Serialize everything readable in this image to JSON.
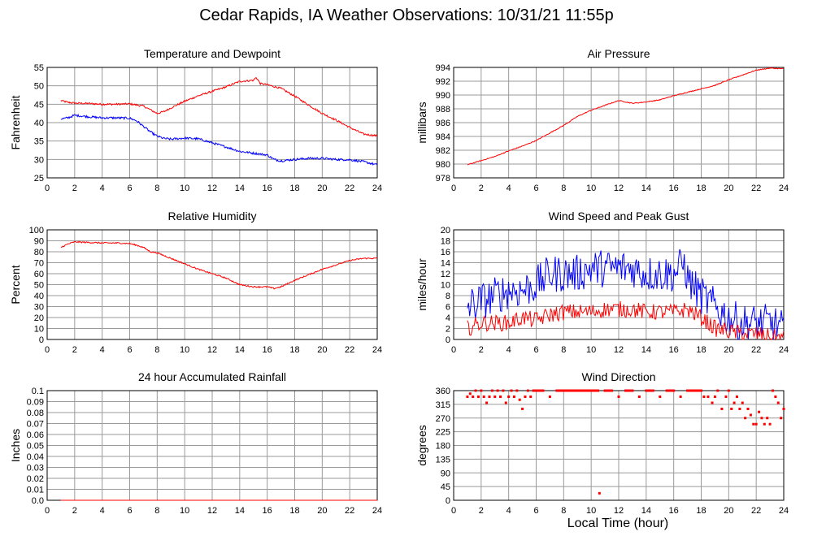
{
  "page": {
    "title": "Cedar Rapids, IA Weather Observations: 10/31/21 11:55p",
    "xaxis_title": "Local Time (hour)"
  },
  "colors": {
    "red": "#ff0000",
    "blue": "#0000ff",
    "grid": "#9a9a9a"
  },
  "chart_data": [
    {
      "type": "line",
      "title": "Temperature and Dewpoint",
      "ylabel": "Fahrenheit",
      "xlim": [
        0,
        24
      ],
      "ylim": [
        25,
        55
      ],
      "xticks": [
        2,
        4,
        6,
        8,
        10,
        12,
        14,
        16,
        18,
        20,
        22,
        24
      ],
      "yticks": [
        25,
        30,
        35,
        40,
        45,
        50,
        55
      ],
      "x_tick_labels": [
        "0",
        "2",
        "4",
        "6",
        "8",
        "10",
        "12",
        "14",
        "16",
        "18",
        "20",
        "22",
        "24"
      ],
      "series": [
        {
          "color": "#ff0000",
          "noise": 0.25,
          "x": [
            1,
            1.5,
            2,
            3,
            4,
            5,
            6,
            7,
            7.5,
            8,
            8.5,
            9,
            10,
            11,
            12,
            13,
            14,
            15,
            15.2,
            15.5,
            16,
            17,
            18,
            19,
            20,
            21,
            22,
            23,
            24
          ],
          "values": [
            46,
            45.5,
            45.3,
            45.2,
            45,
            45,
            45.1,
            44.5,
            43.5,
            42.5,
            43,
            44,
            45.8,
            47.3,
            48.5,
            49.7,
            51.2,
            51.5,
            52.3,
            50.6,
            50.3,
            49.3,
            47.2,
            44.8,
            42.5,
            40.7,
            38.7,
            36.9,
            36.4
          ]
        },
        {
          "color": "#0000ff",
          "noise": 0.3,
          "x": [
            1,
            1.5,
            2,
            3,
            4,
            5,
            6,
            6.5,
            7,
            7.5,
            8,
            8.5,
            9,
            10,
            11,
            12,
            13,
            14,
            15,
            16,
            16.5,
            17,
            18,
            19,
            20,
            21,
            22,
            23,
            24
          ],
          "values": [
            41,
            41.3,
            42,
            41.6,
            41.3,
            41.3,
            41.2,
            40.5,
            39,
            37.5,
            36.3,
            35.7,
            35.5,
            35.8,
            35.6,
            34.5,
            33.4,
            32.2,
            31.7,
            31.2,
            30,
            29.6,
            30,
            30.3,
            30.3,
            30,
            29.9,
            29.4,
            28.5
          ]
        }
      ]
    },
    {
      "type": "line",
      "title": "Air Pressure",
      "ylabel": "millibars",
      "xlim": [
        0,
        24
      ],
      "ylim": [
        978,
        994
      ],
      "xticks": [
        2,
        4,
        6,
        8,
        10,
        12,
        14,
        16,
        18,
        20,
        22,
        24
      ],
      "yticks": [
        978,
        980,
        982,
        984,
        986,
        988,
        990,
        992,
        994
      ],
      "x_tick_labels": [
        "0",
        "2",
        "4",
        "6",
        "8",
        "10",
        "12",
        "14",
        "16",
        "18",
        "20",
        "22",
        "24"
      ],
      "series": [
        {
          "color": "#ff0000",
          "noise": 0.06,
          "x": [
            1,
            2,
            3,
            4,
            5,
            6,
            7,
            8,
            9,
            10,
            11,
            12,
            13,
            14,
            15,
            16,
            17,
            18,
            19,
            20,
            21,
            22,
            23,
            24
          ],
          "values": [
            979.9,
            980.5,
            981.1,
            981.9,
            982.6,
            983.4,
            984.5,
            985.6,
            986.9,
            987.8,
            988.5,
            989.2,
            988.8,
            989,
            989.3,
            989.9,
            990.4,
            990.9,
            991.4,
            992.2,
            992.9,
            993.6,
            993.9,
            993.8
          ]
        }
      ]
    },
    {
      "type": "line",
      "title": "Relative Humidity",
      "ylabel": "Percent",
      "xlim": [
        0,
        24
      ],
      "ylim": [
        0,
        100
      ],
      "xticks": [
        2,
        4,
        6,
        8,
        10,
        12,
        14,
        16,
        18,
        20,
        22,
        24
      ],
      "yticks": [
        0,
        10,
        20,
        30,
        40,
        50,
        60,
        70,
        80,
        90,
        100
      ],
      "x_tick_labels": [
        "0",
        "2",
        "4",
        "6",
        "8",
        "10",
        "12",
        "14",
        "16",
        "18",
        "20",
        "22",
        "24"
      ],
      "series": [
        {
          "color": "#ff0000",
          "noise": 0.6,
          "x": [
            1,
            1.5,
            2,
            3,
            4,
            5,
            6,
            6.5,
            7,
            7.5,
            8,
            9,
            10,
            11,
            12,
            13,
            14,
            15,
            16,
            16.5,
            17,
            18,
            19,
            20,
            21,
            22,
            23,
            24
          ],
          "values": [
            84,
            87,
            89,
            88.5,
            88,
            88,
            87.5,
            86,
            84,
            80,
            79,
            74,
            69,
            64,
            60,
            56,
            50,
            48,
            48,
            46.5,
            48,
            54,
            59,
            64,
            68,
            72,
            74,
            74
          ]
        }
      ]
    },
    {
      "type": "line",
      "title": "Wind Speed and Peak Gust",
      "ylabel": "miles/hour",
      "xlim": [
        0,
        24
      ],
      "ylim": [
        0,
        20
      ],
      "xticks": [
        2,
        4,
        6,
        8,
        10,
        12,
        14,
        16,
        18,
        20,
        22,
        24
      ],
      "yticks": [
        0,
        2,
        4,
        6,
        8,
        10,
        12,
        14,
        16,
        18,
        20
      ],
      "x_tick_labels": [
        "0",
        "2",
        "4",
        "6",
        "8",
        "10",
        "12",
        "14",
        "16",
        "18",
        "20",
        "22",
        "24"
      ],
      "series": [
        {
          "color": "#0000ff",
          "noise": 3.5,
          "x": [
            1,
            2,
            3,
            4,
            5,
            6,
            7,
            8,
            9,
            10,
            11,
            12,
            13,
            14,
            15,
            16,
            16.8,
            17,
            18,
            19,
            20,
            21,
            22,
            23,
            24
          ],
          "values": [
            6,
            7,
            8,
            9,
            9,
            10,
            12,
            12,
            12,
            13,
            13,
            13,
            13,
            12,
            12,
            12,
            14,
            11,
            8,
            6,
            4,
            3,
            3,
            3,
            2
          ]
        },
        {
          "color": "#ff0000",
          "noise": 1.5,
          "x": [
            1,
            2,
            3,
            4,
            5,
            6,
            7,
            8,
            9,
            10,
            11,
            12,
            13,
            14,
            15,
            16,
            17,
            18,
            19,
            20,
            21,
            22,
            23,
            24
          ],
          "values": [
            2,
            3,
            3,
            3,
            4,
            3.5,
            4.5,
            5,
            5,
            5,
            5.5,
            5.5,
            5.5,
            5,
            5,
            5,
            5.5,
            4,
            2,
            1.5,
            1,
            1,
            0.5,
            0.3
          ]
        }
      ]
    },
    {
      "type": "line",
      "title": "24 hour Accumulated Rainfall",
      "ylabel": "Inches",
      "xlim": [
        0,
        24
      ],
      "ylim": [
        0,
        0.1
      ],
      "xticks": [
        2,
        4,
        6,
        8,
        10,
        12,
        14,
        16,
        18,
        20,
        22,
        24
      ],
      "yticks": [
        0,
        0.01,
        0.02,
        0.03,
        0.04,
        0.05,
        0.06,
        0.07,
        0.08,
        0.09,
        0.1
      ],
      "y_tick_labels": [
        "0.0",
        "0.01",
        "0.02",
        "0.03",
        "0.04",
        "0.05",
        "0.06",
        "0.07",
        "0.08",
        "0.09",
        "0.1"
      ],
      "x_tick_labels": [
        "0",
        "2",
        "4",
        "6",
        "8",
        "10",
        "12",
        "14",
        "16",
        "18",
        "20",
        "22",
        "24"
      ],
      "series": [
        {
          "color": "#ff0000",
          "noise": 0,
          "x": [
            1,
            24
          ],
          "values": [
            0,
            0
          ]
        }
      ]
    },
    {
      "type": "scatter",
      "title": "Wind Direction",
      "ylabel": "degrees",
      "xlim": [
        0,
        24
      ],
      "ylim": [
        0,
        360
      ],
      "xticks": [
        2,
        4,
        6,
        8,
        10,
        12,
        14,
        16,
        18,
        20,
        22,
        24
      ],
      "yticks": [
        0,
        45,
        90,
        135,
        180,
        225,
        270,
        315,
        360
      ],
      "x_tick_labels": [
        "0",
        "2",
        "4",
        "6",
        "8",
        "10",
        "12",
        "14",
        "16",
        "18",
        "20",
        "22",
        "24"
      ],
      "series": [
        {
          "color": "#ff0000",
          "x": [
            1.0,
            1.2,
            1.4,
            1.6,
            1.8,
            2.0,
            2.2,
            2.4,
            2.6,
            2.8,
            3.0,
            3.2,
            3.4,
            3.6,
            3.8,
            4.0,
            4.2,
            4.4,
            4.6,
            4.8,
            5.0,
            5.2,
            5.4,
            5.6,
            5.8,
            6.0,
            6.5,
            7.0,
            7.5,
            8.0,
            8.5,
            9.0,
            9.5,
            10.0,
            10.5,
            10.6,
            11.0,
            11.5,
            12.0,
            12.5,
            13.0,
            13.5,
            14.0,
            14.5,
            15.0,
            15.5,
            16.0,
            16.5,
            17.0,
            17.5,
            18.0,
            18.2,
            18.5,
            18.8,
            19.0,
            19.2,
            19.5,
            19.8,
            20.0,
            20.2,
            20.4,
            20.6,
            20.8,
            21.0,
            21.2,
            21.4,
            21.6,
            21.8,
            22.0,
            22.2,
            22.4,
            22.6,
            22.8,
            23.0,
            23.2,
            23.4,
            23.6,
            23.8,
            24.0
          ],
          "values": [
            340,
            350,
            340,
            360,
            340,
            360,
            340,
            320,
            340,
            360,
            340,
            360,
            340,
            360,
            320,
            340,
            360,
            340,
            360,
            330,
            300,
            340,
            360,
            340,
            360,
            360,
            360,
            340,
            360,
            360,
            360,
            360,
            360,
            360,
            360,
            23,
            360,
            360,
            340,
            360,
            360,
            340,
            360,
            360,
            340,
            360,
            360,
            340,
            360,
            360,
            360,
            340,
            340,
            320,
            340,
            360,
            300,
            340,
            360,
            300,
            320,
            340,
            300,
            320,
            270,
            300,
            280,
            250,
            250,
            290,
            270,
            250,
            270,
            250,
            360,
            340,
            320,
            270,
            300
          ]
        }
      ]
    }
  ]
}
